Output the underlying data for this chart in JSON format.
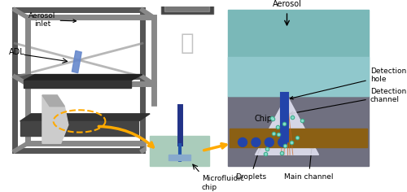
{
  "fig_width": 5.0,
  "fig_height": 2.36,
  "dpi": 100,
  "bg_color": "#ffffff",
  "labels": {
    "aerosol_inlet": "Aerosol\ninlet",
    "ADL": "ADL",
    "aerosol_top": "Aerosol",
    "detection_hole": "Detection\nhole",
    "detection_channel": "Detection\nchannel",
    "chip": "Chip",
    "droplets": "Droplets",
    "main_channel": "Main channel",
    "microfluidic_chip": "Microfluidic\nchip"
  },
  "colors": {
    "frame_gray": "#888888",
    "frame_dark": "#555555",
    "platform_dark": "#333333",
    "chip_teal": "#7ab8b8",
    "chip_bg": "#b0d0d8",
    "chip_dark_bg": "#607080",
    "channel_blue": "#2244aa",
    "droplet_teal": "#3aaa88",
    "cone_white": "#e8e8f0",
    "arrow_orange": "#ffaa00",
    "arrow_black": "#000000",
    "adl_blue": "#6688cc",
    "main_ch_brown": "#8B6914",
    "border_dark": "#222222"
  }
}
